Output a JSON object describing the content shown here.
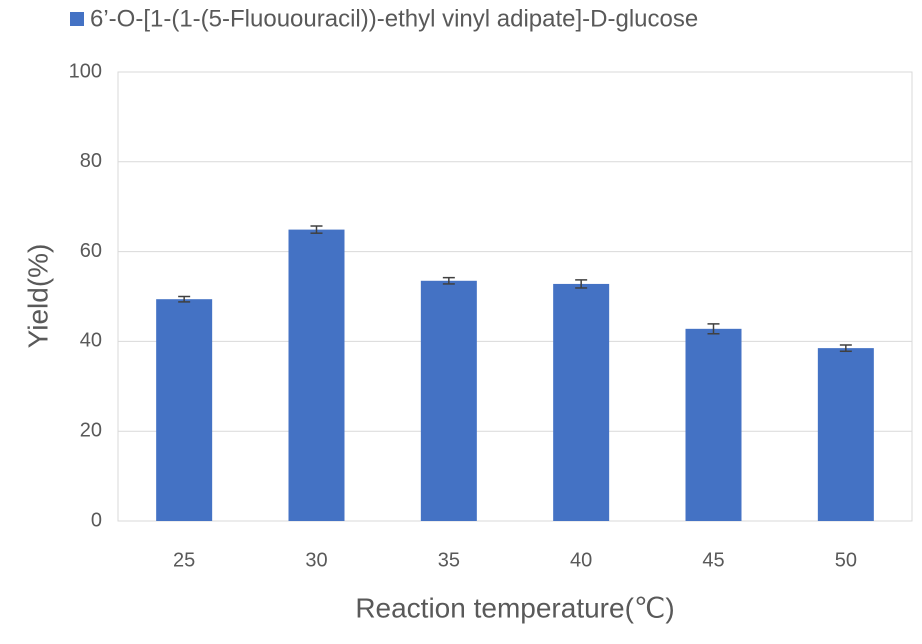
{
  "chart_data": {
    "type": "bar",
    "x_label": "Reaction temperature(℃)",
    "y_label": "Yield(%)",
    "categories": [
      "25",
      "30",
      "35",
      "40",
      "45",
      "50"
    ],
    "series": [
      {
        "name": "6’-O-[1-(1-(5-Fluououracil))-ethyl vinyl adipate]-D-glucose",
        "color": "#4472c4",
        "values": [
          49.4,
          64.9,
          53.5,
          52.8,
          42.8,
          38.5
        ],
        "errors": [
          0.6,
          0.8,
          0.7,
          0.9,
          1.1,
          0.7
        ]
      }
    ],
    "ylim": [
      0,
      100
    ],
    "yticks": [
      0,
      20,
      40,
      60,
      80,
      100
    ],
    "grid": true,
    "legend": "top"
  }
}
